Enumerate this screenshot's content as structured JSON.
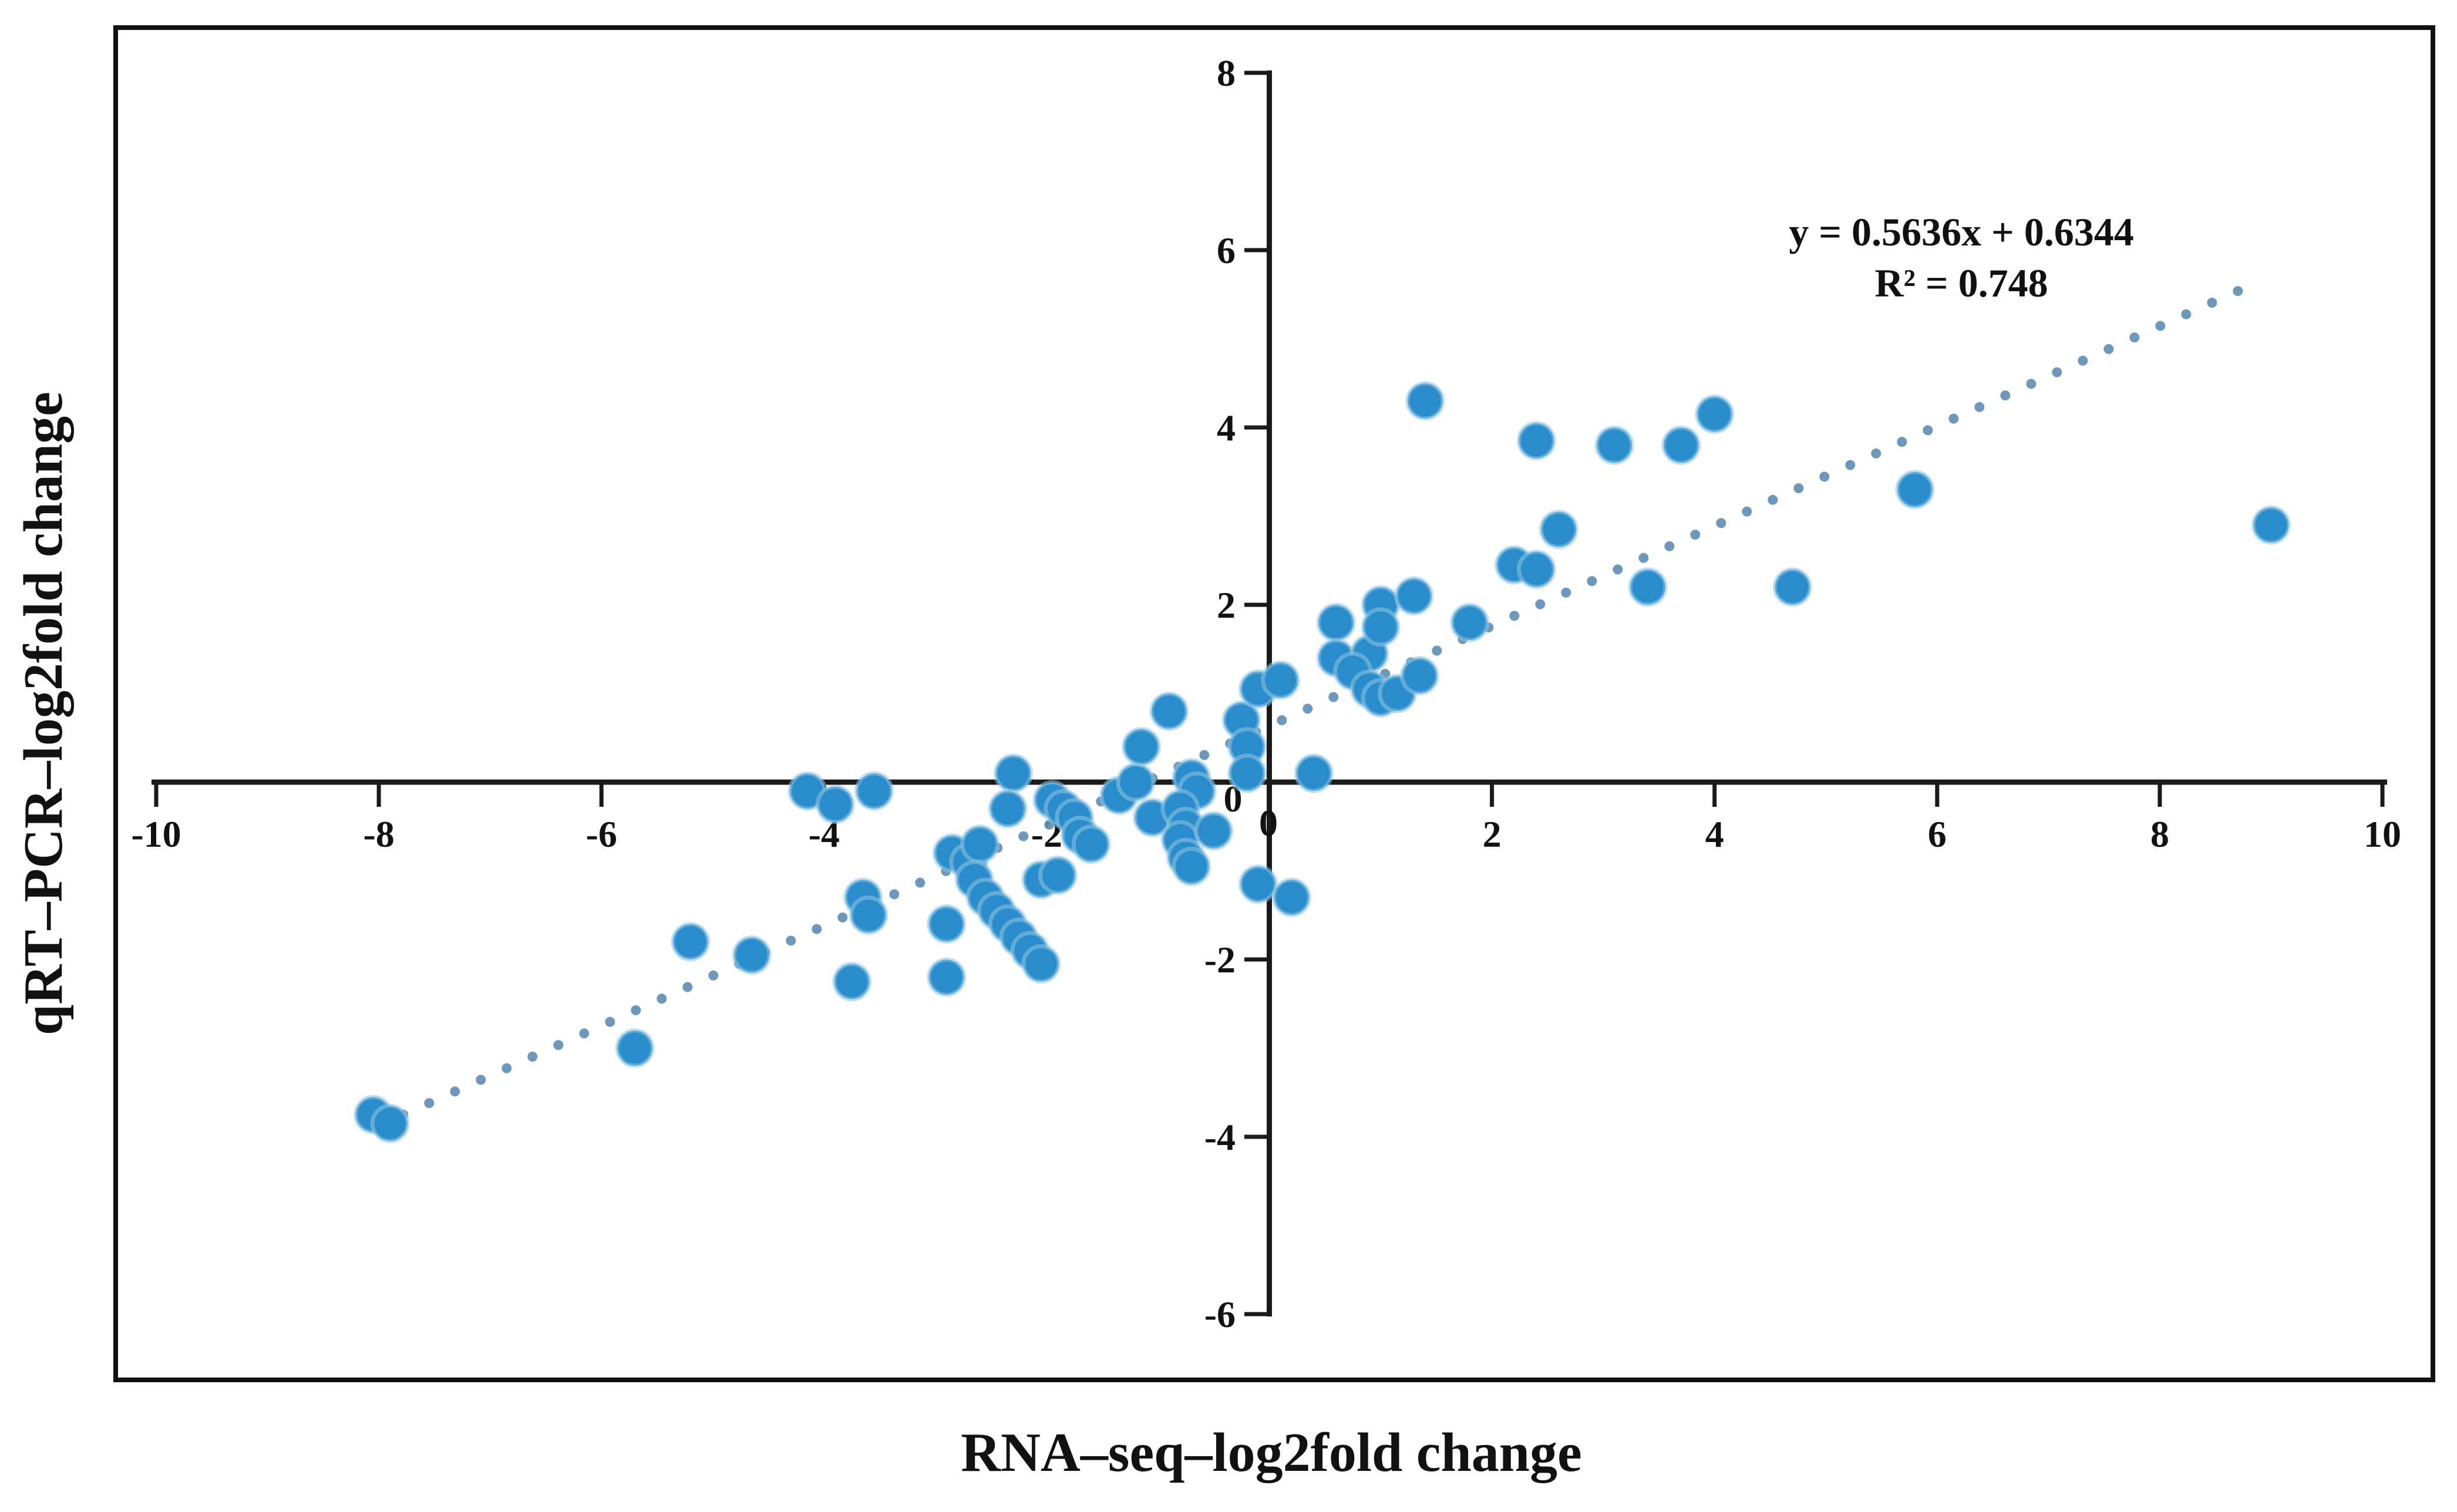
{
  "figure": {
    "background": "#ffffff",
    "border_color": "#111111",
    "axis_color": "#1a1a1a"
  },
  "chart_data": {
    "type": "scatter",
    "title": "",
    "xlabel": "RNA–seq–log2fold change",
    "ylabel": "qRT–PCR–log2fold change",
    "xlim": [
      -10,
      10
    ],
    "ylim": [
      -6,
      8
    ],
    "x_ticks": [
      -10,
      -8,
      -6,
      -4,
      -2,
      0,
      2,
      4,
      6,
      8,
      10
    ],
    "y_ticks": [
      8,
      6,
      4,
      2,
      0,
      -2,
      -4,
      -6
    ],
    "grid": false,
    "legend_position": "none",
    "marker_color": "#2b8ccb",
    "marker_halo_color": "#8ec4e3",
    "trendline": {
      "equation": "y = 0.5636x + 0.6344",
      "r_squared_label": "R² = 0.748",
      "slope": 0.5636,
      "intercept": 0.6344,
      "x_start": -7.78,
      "x_end": 8.93,
      "style": "dotted",
      "color": "#5f8cb2"
    },
    "points": [
      [
        -8.05,
        -3.75
      ],
      [
        -7.9,
        -3.85
      ],
      [
        -5.7,
        -3.0
      ],
      [
        -5.2,
        -1.8
      ],
      [
        -4.65,
        -1.95
      ],
      [
        -4.15,
        -0.1
      ],
      [
        -3.9,
        -0.25
      ],
      [
        -3.55,
        -0.1
      ],
      [
        -3.65,
        -1.3
      ],
      [
        -3.6,
        -1.5
      ],
      [
        -3.75,
        -2.25
      ],
      [
        -2.85,
        -0.8
      ],
      [
        -2.7,
        -0.9
      ],
      [
        -2.6,
        -0.7
      ],
      [
        -2.9,
        -1.6
      ],
      [
        -2.9,
        -2.2
      ],
      [
        -2.65,
        -1.1
      ],
      [
        -2.55,
        -1.3
      ],
      [
        -2.45,
        -1.45
      ],
      [
        -2.35,
        -1.6
      ],
      [
        -2.25,
        -1.75
      ],
      [
        -2.15,
        -1.9
      ],
      [
        -2.05,
        -2.05
      ],
      [
        -2.05,
        -1.1
      ],
      [
        -1.9,
        -1.05
      ],
      [
        -2.3,
        0.1
      ],
      [
        -2.35,
        -0.3
      ],
      [
        -1.95,
        -0.2
      ],
      [
        -1.85,
        -0.3
      ],
      [
        -1.75,
        -0.4
      ],
      [
        -1.7,
        -0.6
      ],
      [
        -1.6,
        -0.7
      ],
      [
        -1.35,
        -0.15
      ],
      [
        -1.2,
        0.0
      ],
      [
        -1.05,
        -0.4
      ],
      [
        -0.7,
        0.05
      ],
      [
        -0.65,
        -0.1
      ],
      [
        -0.8,
        -0.3
      ],
      [
        -0.75,
        -0.5
      ],
      [
        -0.8,
        -0.65
      ],
      [
        -0.75,
        -0.85
      ],
      [
        -0.7,
        -0.95
      ],
      [
        -0.5,
        -0.55
      ],
      [
        -0.1,
        -1.15
      ],
      [
        0.2,
        -1.3
      ],
      [
        -1.15,
        0.4
      ],
      [
        -0.9,
        0.8
      ],
      [
        -0.25,
        0.7
      ],
      [
        -0.2,
        0.4
      ],
      [
        -0.2,
        0.1
      ],
      [
        -0.1,
        1.05
      ],
      [
        0.1,
        1.15
      ],
      [
        0.4,
        0.1
      ],
      [
        0.6,
        1.8
      ],
      [
        0.6,
        1.4
      ],
      [
        0.9,
        1.45
      ],
      [
        1.0,
        2.0
      ],
      [
        1.0,
        1.75
      ],
      [
        1.3,
        2.1
      ],
      [
        1.8,
        1.8
      ],
      [
        0.75,
        1.25
      ],
      [
        0.9,
        1.05
      ],
      [
        1.0,
        0.95
      ],
      [
        1.15,
        1.0
      ],
      [
        1.35,
        1.2
      ],
      [
        2.2,
        2.45
      ],
      [
        2.4,
        2.4
      ],
      [
        2.6,
        2.85
      ],
      [
        1.4,
        4.3
      ],
      [
        2.4,
        3.85
      ],
      [
        3.1,
        3.8
      ],
      [
        3.7,
        3.8
      ],
      [
        4.0,
        4.15
      ],
      [
        3.4,
        2.2
      ],
      [
        4.7,
        2.2
      ],
      [
        5.8,
        3.3
      ],
      [
        9.0,
        2.9
      ]
    ]
  }
}
